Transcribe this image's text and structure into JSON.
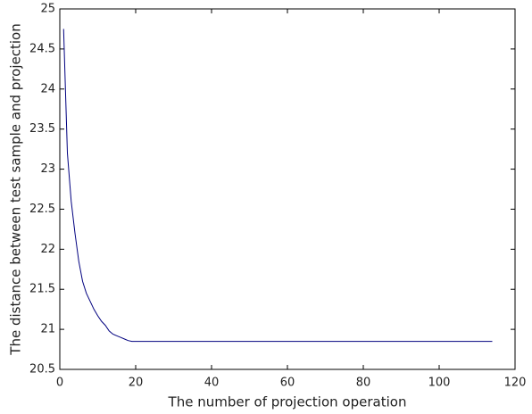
{
  "chart_data": {
    "type": "line",
    "xlabel": "The number of projection operation",
    "ylabel": "The distance between test sample and projection",
    "x": [
      1,
      2,
      3,
      4,
      5,
      6,
      7,
      8,
      9,
      10,
      11,
      12,
      13,
      14,
      15,
      16,
      17,
      18,
      19,
      114
    ],
    "series": [
      {
        "color": "#00007f",
        "values": [
          24.75,
          23.2,
          22.6,
          22.2,
          21.85,
          21.6,
          21.45,
          21.35,
          21.25,
          21.17,
          21.1,
          21.05,
          20.98,
          20.94,
          20.92,
          20.9,
          20.88,
          20.86,
          20.85,
          20.85
        ]
      }
    ],
    "xlim": [
      0,
      120
    ],
    "xticks": [
      0,
      20,
      40,
      60,
      80,
      100,
      120
    ],
    "ylim": [
      20.5,
      25
    ],
    "yticks": [
      20.5,
      21,
      21.5,
      22,
      22.5,
      23,
      23.5,
      24,
      24.5,
      25
    ]
  }
}
